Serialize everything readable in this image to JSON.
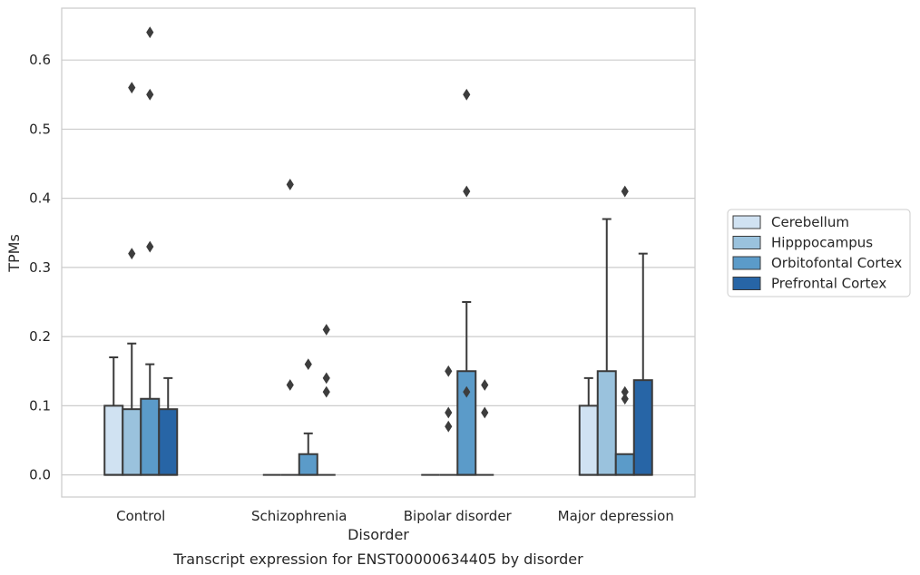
{
  "chart_data": {
    "type": "box",
    "caption": "Transcript expression for ENST00000634405 by disorder",
    "xlabel": "Disorder",
    "ylabel": "TPMs",
    "ylim": [
      -0.032,
      0.675
    ],
    "yticks": [
      0.0,
      0.1,
      0.2,
      0.3,
      0.4,
      0.5,
      0.6
    ],
    "ytick_labels": [
      "0.0",
      "0.1",
      "0.2",
      "0.3",
      "0.4",
      "0.5",
      "0.6"
    ],
    "grid": "horizontal",
    "legend_position": "right",
    "categories": [
      "Control",
      "Schizophrenia",
      "Bipolar disorder",
      "Major depression"
    ],
    "series": [
      {
        "name": "Cerebellum",
        "color": "#d0e2f2",
        "boxes": [
          {
            "whisker_low": 0.0,
            "q1": 0.0,
            "median": 0.0,
            "q3": 0.1,
            "whisker_high": 0.17,
            "outliers": []
          },
          {
            "whisker_low": 0.0,
            "q1": 0.0,
            "median": 0.0,
            "q3": 0.0,
            "whisker_high": 0.0,
            "outliers": []
          },
          {
            "whisker_low": 0.0,
            "q1": 0.0,
            "median": 0.0,
            "q3": 0.0,
            "whisker_high": 0.0,
            "outliers": []
          },
          {
            "whisker_low": 0.0,
            "q1": 0.0,
            "median": 0.0,
            "q3": 0.1,
            "whisker_high": 0.14,
            "outliers": []
          }
        ]
      },
      {
        "name": "Hipppocampus",
        "color": "#9ac2dd",
        "boxes": [
          {
            "whisker_low": 0.0,
            "q1": 0.0,
            "median": 0.0,
            "q3": 0.095,
            "whisker_high": 0.19,
            "outliers": [
              0.32,
              0.56
            ]
          },
          {
            "whisker_low": 0.0,
            "q1": 0.0,
            "median": 0.0,
            "q3": 0.0,
            "whisker_high": 0.0,
            "outliers": [
              0.13,
              0.42
            ]
          },
          {
            "whisker_low": 0.0,
            "q1": 0.0,
            "median": 0.0,
            "q3": 0.0,
            "whisker_high": 0.0,
            "outliers": [
              0.07,
              0.09,
              0.15
            ]
          },
          {
            "whisker_low": 0.0,
            "q1": 0.0,
            "median": 0.0,
            "q3": 0.15,
            "whisker_high": 0.37,
            "outliers": []
          }
        ]
      },
      {
        "name": "Orbitofontal Cortex",
        "color": "#5b9bc9",
        "boxes": [
          {
            "whisker_low": 0.0,
            "q1": 0.0,
            "median": 0.0,
            "q3": 0.11,
            "whisker_high": 0.16,
            "outliers": [
              0.33,
              0.55,
              0.64
            ]
          },
          {
            "whisker_low": 0.0,
            "q1": 0.0,
            "median": 0.0,
            "q3": 0.03,
            "whisker_high": 0.06,
            "outliers": [
              0.16
            ]
          },
          {
            "whisker_low": 0.0,
            "q1": 0.0,
            "median": 0.0,
            "q3": 0.15,
            "whisker_high": 0.25,
            "outliers": [
              0.12,
              0.41,
              0.55
            ]
          },
          {
            "whisker_low": 0.0,
            "q1": 0.0,
            "median": 0.0,
            "q3": 0.03,
            "whisker_high": 0.03,
            "outliers": [
              0.11,
              0.12,
              0.41
            ]
          }
        ]
      },
      {
        "name": "Prefrontal Cortex",
        "color": "#2765a6",
        "boxes": [
          {
            "whisker_low": 0.0,
            "q1": 0.0,
            "median": 0.0,
            "q3": 0.095,
            "whisker_high": 0.14,
            "outliers": []
          },
          {
            "whisker_low": 0.0,
            "q1": 0.0,
            "median": 0.0,
            "q3": 0.0,
            "whisker_high": 0.0,
            "outliers": [
              0.12,
              0.14,
              0.21
            ]
          },
          {
            "whisker_low": 0.0,
            "q1": 0.0,
            "median": 0.0,
            "q3": 0.0,
            "whisker_high": 0.0,
            "outliers": [
              0.09,
              0.13
            ]
          },
          {
            "whisker_low": 0.0,
            "q1": 0.0,
            "median": 0.0,
            "q3": 0.137,
            "whisker_high": 0.32,
            "outliers": []
          }
        ]
      }
    ]
  }
}
